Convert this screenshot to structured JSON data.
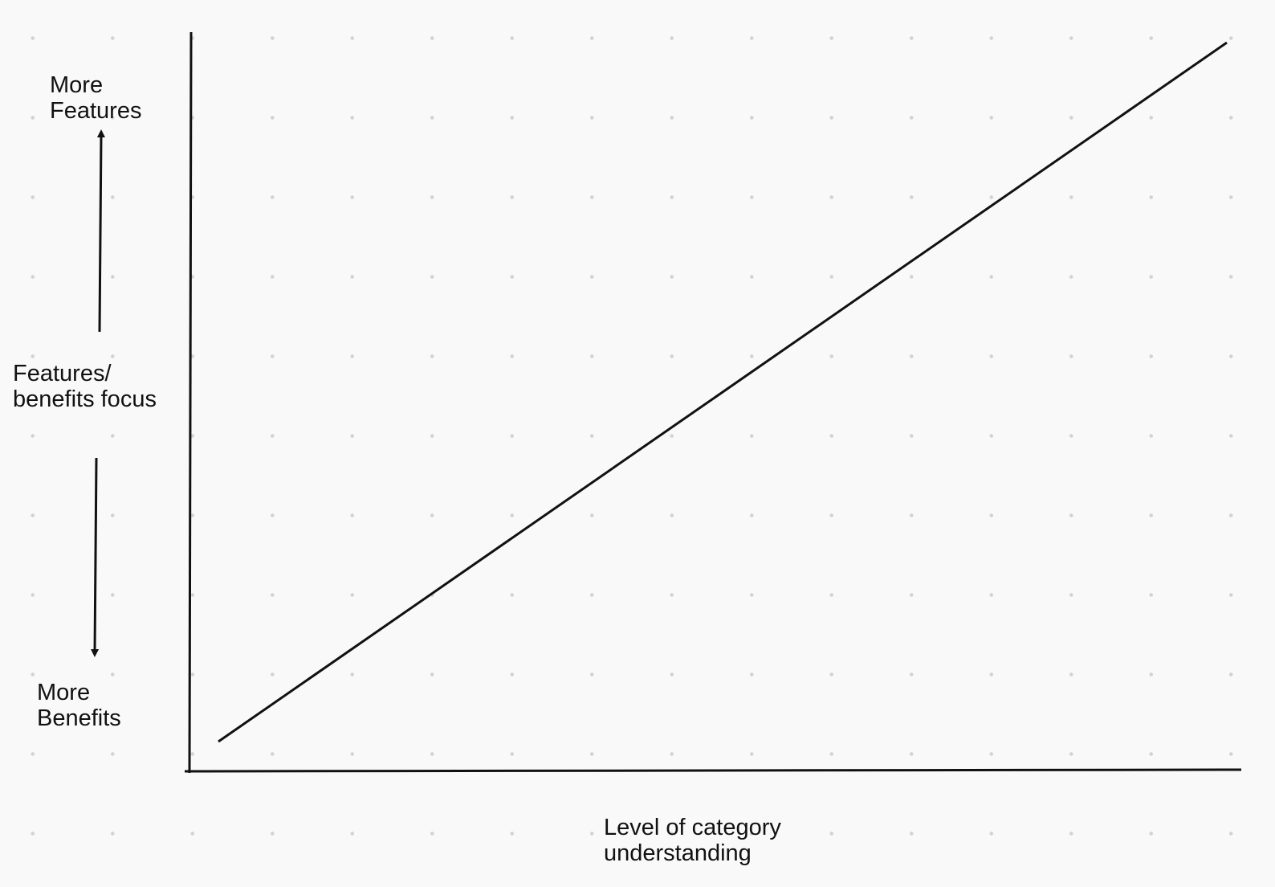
{
  "diagram": {
    "y_axis": {
      "title_line1": "Features/",
      "title_line2": "benefits focus",
      "top_label_line1": "More",
      "top_label_line2": "Features",
      "bottom_label_line1": "More",
      "bottom_label_line2": "Benefits"
    },
    "x_axis": {
      "title_line1": "Level of category",
      "title_line2": "understanding"
    },
    "trend": {
      "direction": "increasing",
      "description_start": "low category understanding → more benefits",
      "description_end": "high category understanding → more features"
    },
    "colors": {
      "background": "#f9f9f9",
      "grid_dot": "#d2d2d2",
      "stroke": "#111111"
    }
  }
}
